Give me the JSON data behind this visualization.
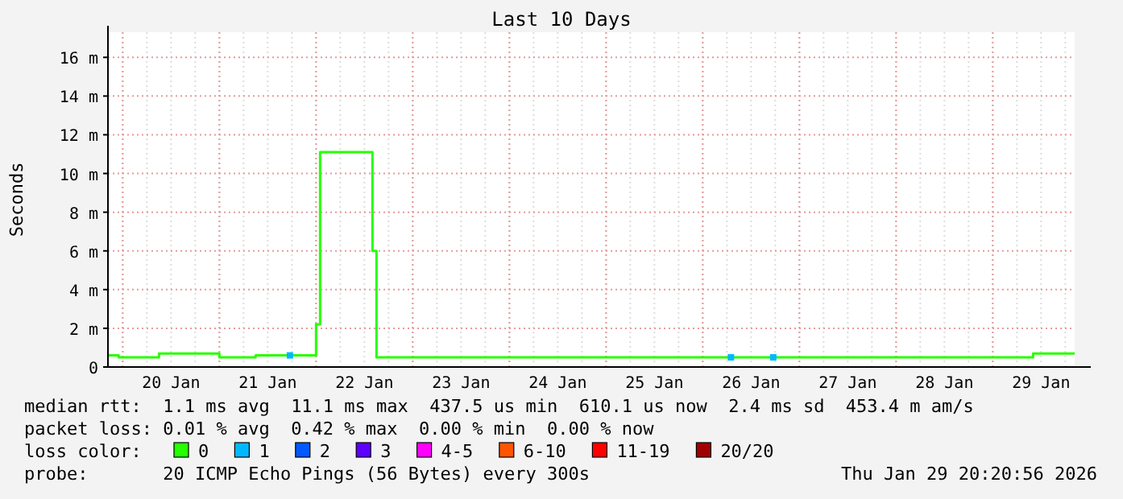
{
  "chart_data": {
    "type": "step",
    "title": "Last 10 Days",
    "ylabel": "Seconds",
    "legend_title": "loss color:",
    "legend": "bottom",
    "grid": true,
    "line_style": "solid",
    "xlim": [
      "2026-01-19T20:20",
      "2026-01-29T20:20"
    ],
    "xticks": [
      {
        "value": "2026-01-20T12:00",
        "label": "20 Jan"
      },
      {
        "value": "2026-01-21T12:00",
        "label": "21 Jan"
      },
      {
        "value": "2026-01-22T12:00",
        "label": "22 Jan"
      },
      {
        "value": "2026-01-23T12:00",
        "label": "23 Jan"
      },
      {
        "value": "2026-01-24T12:00",
        "label": "24 Jan"
      },
      {
        "value": "2026-01-25T12:00",
        "label": "25 Jan"
      },
      {
        "value": "2026-01-26T12:00",
        "label": "26 Jan"
      },
      {
        "value": "2026-01-27T12:00",
        "label": "27 Jan"
      },
      {
        "value": "2026-01-28T12:00",
        "label": "28 Jan"
      },
      {
        "value": "2026-01-29T12:00",
        "label": "29 Jan"
      }
    ],
    "ylim": [
      0,
      17.3
    ],
    "yticks": [
      0,
      {
        "value": 2,
        "label": "2 m"
      },
      {
        "value": 4,
        "label": "4 m"
      },
      {
        "value": 6,
        "label": "6 m"
      },
      {
        "value": 8,
        "label": "8 m"
      },
      {
        "value": 10,
        "label": "10 m"
      },
      {
        "value": 12,
        "label": "12 m"
      },
      {
        "value": 14,
        "label": "14 m"
      },
      {
        "value": 16,
        "label": "16 m"
      }
    ],
    "series": [
      {
        "name": "0",
        "color": "#26ff00",
        "x": [
          "2026-01-19T20:20",
          "2026-01-19T23:00",
          "2026-01-20T09:00",
          "2026-01-21T00:00",
          "2026-01-21T09:00",
          "2026-01-22T00:00",
          "2026-01-22T01:00",
          "2026-01-22T14:00",
          "2026-01-22T15:00",
          "2026-01-29T10:00",
          "2026-01-29T20:20"
        ],
        "values": [
          0.6,
          0.5,
          0.7,
          0.5,
          0.6,
          2.2,
          11.1,
          6.0,
          0.5,
          0.7,
          0.7
        ]
      },
      {
        "name": "1",
        "color": "#00b8ff",
        "type": "scatter",
        "marker": "square",
        "x": [
          "2026-01-21T17:30",
          "2026-01-26T07:00",
          "2026-01-26T17:30"
        ],
        "values": [
          0.6,
          0.5,
          0.5
        ]
      },
      {
        "name": "2",
        "color": "#0059ff",
        "type": "scatter"
      },
      {
        "name": "3",
        "color": "#5e00ff",
        "type": "scatter"
      },
      {
        "name": "4-5",
        "color": "#ff00ff",
        "type": "scatter"
      },
      {
        "name": "6-10",
        "color": "#ff5500",
        "type": "scatter"
      },
      {
        "name": "11-19",
        "color": "#ff0000",
        "type": "scatter"
      },
      {
        "name": "20/20",
        "color": "#a10000",
        "type": "scatter"
      }
    ],
    "annotations": [
      "median rtt:  1.1 ms avg  11.1 ms max  437.5 us min  610.1 us now  2.4 ms sd  453.4 m am/s",
      "packet loss: 0.01 % avg  0.42 % max  0.00 % min  0.00 % now",
      "probe:       20 ICMP Echo Pings (56 Bytes) every 300s",
      "Thu Jan 29 20:20:56 2026"
    ]
  }
}
